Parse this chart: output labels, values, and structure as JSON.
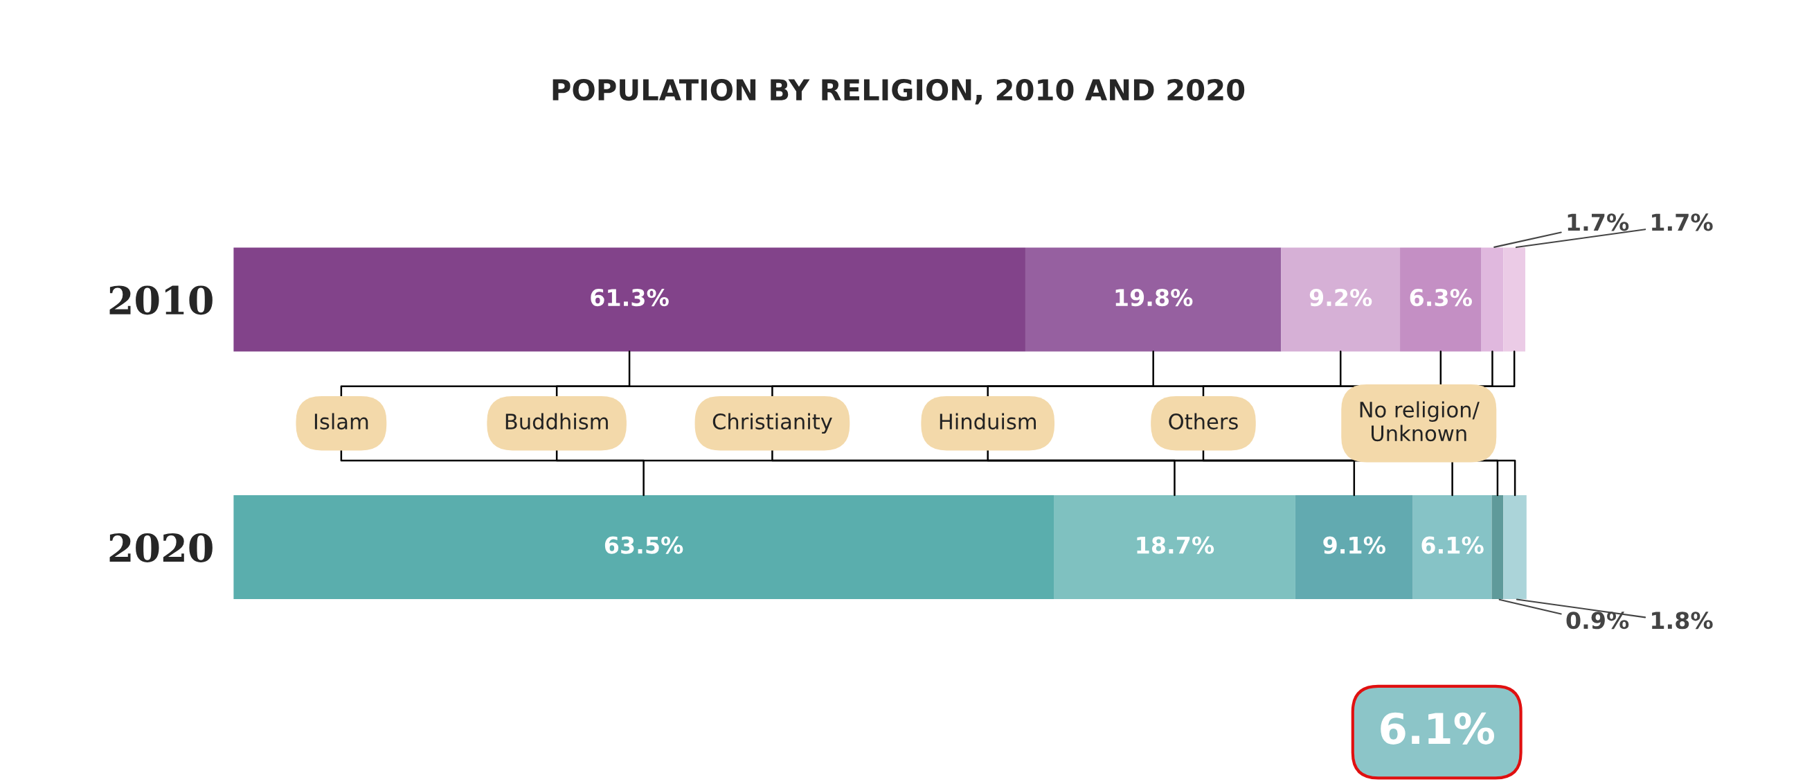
{
  "chart_data": {
    "type": "bar",
    "title": "POPULATION BY RELIGION, 2010 AND 2020",
    "orientation": "horizontal",
    "stacked": true,
    "legend": false,
    "categories": [
      "2010",
      "2020"
    ],
    "series": [
      {
        "name": "Islam",
        "colors": [
          "#82438a",
          "#5aaead"
        ],
        "values": [
          61.3,
          63.5
        ],
        "value_labels": [
          "61.3%",
          "63.5%"
        ]
      },
      {
        "name": "Buddhism",
        "colors": [
          "#9660a0",
          "#7fc1c0"
        ],
        "values": [
          19.8,
          18.7
        ],
        "value_labels": [
          "19.8%",
          "18.7%"
        ]
      },
      {
        "name": "Christianity",
        "colors": [
          "#d6b0d6",
          "#62aab0"
        ],
        "values": [
          9.2,
          9.1
        ],
        "value_labels": [
          "9.2%",
          "9.1%"
        ]
      },
      {
        "name": "Hinduism",
        "colors": [
          "#c48fc4",
          "#86c3c6"
        ],
        "values": [
          6.3,
          6.1
        ],
        "value_labels": [
          "6.3%",
          "6.1%"
        ]
      },
      {
        "name": "Others",
        "colors": [
          "#e0b8de",
          "#5f9a9a"
        ],
        "values": [
          1.7,
          0.9
        ],
        "value_labels": [
          "1.7%",
          "0.9%"
        ]
      },
      {
        "name": "No religion/\nUnknown",
        "colors": [
          "#ebcbe6",
          "#abd4d9"
        ],
        "values": [
          1.7,
          1.8
        ],
        "value_labels": [
          "1.7%",
          "1.8%"
        ]
      }
    ],
    "annotations": [
      "6.1%"
    ]
  }
}
